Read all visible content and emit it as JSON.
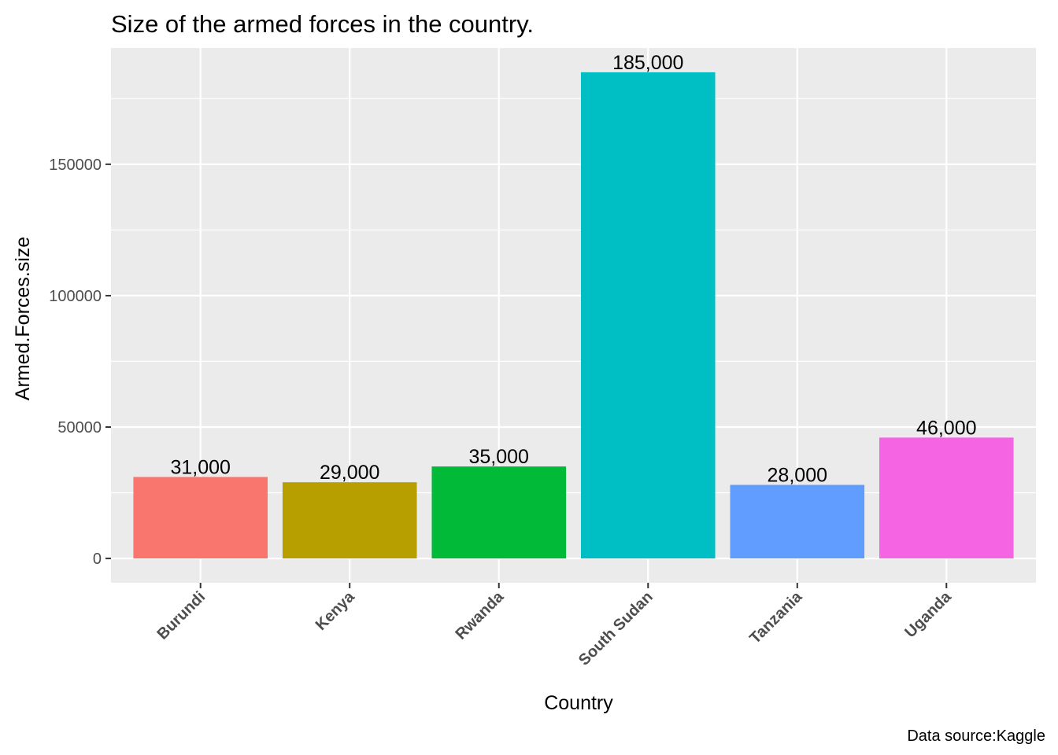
{
  "chart_data": {
    "type": "bar",
    "title": "Size of the armed forces in the country.",
    "xlabel": "Country",
    "ylabel": "Armed.Forces.size",
    "caption": "Data source:Kaggle",
    "categories": [
      "Burundi",
      "Kenya",
      "Rwanda",
      "South Sudan",
      "Tanzania",
      "Uganda"
    ],
    "values": [
      31000,
      29000,
      35000,
      185000,
      28000,
      46000
    ],
    "data_labels": [
      "31,000",
      "29,000",
      "35,000",
      "185,000",
      "28,000",
      "46,000"
    ],
    "colors": [
      "#F8766D",
      "#B79F00",
      "#00BA38",
      "#00BFC4",
      "#619CFF",
      "#F564E3"
    ],
    "ylim": [
      -9250,
      194250
    ],
    "yticks": [
      0,
      50000,
      100000,
      150000
    ],
    "ytick_labels": [
      "0",
      "50000",
      "100000",
      "150000"
    ],
    "grid": true,
    "legend": "none",
    "panel_background": "#EBEBEB",
    "grid_color": "#FFFFFF"
  }
}
